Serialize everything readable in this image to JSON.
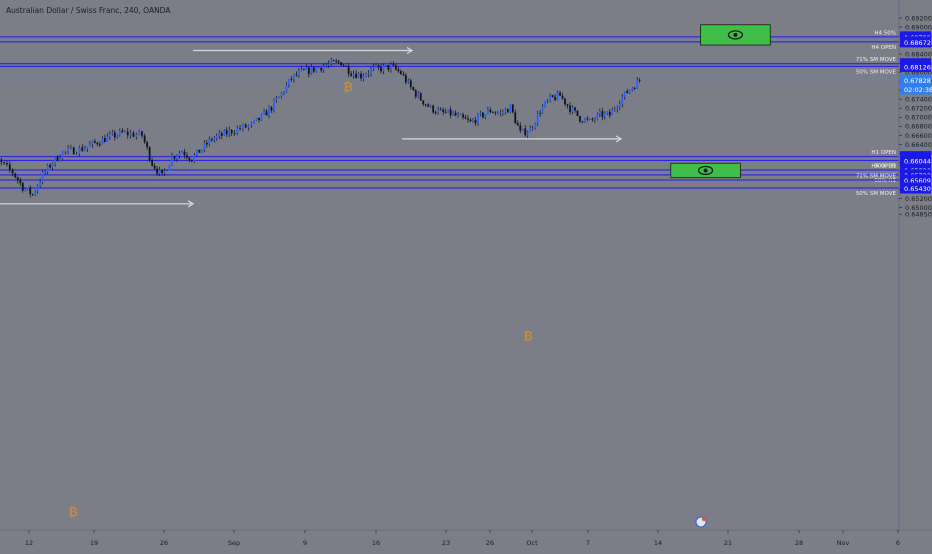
{
  "header": {
    "title": "Australian Dollar / Swiss Franc, 240, OANDA"
  },
  "colors": {
    "background": "#7b7e89",
    "up_candle": "#2962ff",
    "down_candle": "#101218",
    "level_line": "#1a1ae6",
    "last_price_line": "#4a90e2",
    "zone_fill": "#3fbf4a",
    "axis_text": "#1a1d26",
    "label_bg": "#1a1ae6",
    "arrow": "#d8d8e0",
    "bitcoin_icon": "#c98a3c"
  },
  "chart_data": {
    "type": "line",
    "title": "Australian Dollar / Swiss Franc, 240, OANDA",
    "xlabel": "",
    "ylabel": "",
    "ylim": [
      0.6478,
      0.6928
    ],
    "x_ticks": [
      "12",
      "19",
      "26",
      "Sep",
      "9",
      "16",
      "23",
      "26",
      "Oct",
      "7",
      "14",
      "21",
      "28",
      "Nov",
      "6"
    ],
    "y_ticks": [
      "0.69200",
      "0.69000",
      "0.68800",
      "0.68600",
      "0.68400",
      "0.68200",
      "0.68000",
      "0.67800",
      "0.67600",
      "0.67400",
      "0.67200",
      "0.67000",
      "0.66800",
      "0.66600",
      "0.66400",
      "0.66200",
      "0.66000",
      "0.65800",
      "0.65600",
      "0.65400",
      "0.65200",
      "0.65000",
      "0.64850"
    ],
    "series": [
      {
        "x": [
          "Aug 8",
          "Aug 9",
          "Aug 11",
          "Aug 12",
          "Aug 13",
          "Aug 14",
          "Aug 15",
          "Aug 16",
          "Aug 18",
          "Aug 19",
          "Aug 20",
          "Aug 21",
          "Aug 22",
          "Aug 24",
          "Aug 25",
          "Aug 26",
          "Aug 27",
          "Aug 28",
          "Aug 29",
          "Aug 30",
          "Aug 31",
          "Sep 1",
          "Sep 2",
          "Sep 4",
          "Sep 5",
          "Sep 6",
          "Sep 7",
          "Sep 8",
          "Sep 9",
          "Sep 10",
          "Sep 11",
          "Sep 12",
          "Sep 13",
          "Sep 14",
          "Sep 15",
          "Sep 16",
          "Sep 17",
          "Sep 18",
          "Sep 19",
          "Sep 20",
          "Sep 21",
          "Sep 22",
          "Sep 23",
          "Sep 24",
          "Sep 25",
          "Sep 26",
          "Sep 27",
          "Sep 28",
          "Sep 29",
          "Sep 30",
          "Oct 1",
          "Oct 2",
          "Oct 3",
          "Oct 4",
          "Oct 5",
          "Oct 6",
          "Oct 7",
          "Oct 8",
          "Oct 9",
          "Oct 10",
          "Oct 11",
          "Oct 12",
          "Oct 13"
        ],
        "values": [
          0.6628,
          0.6612,
          0.6578,
          0.6545,
          0.6528,
          0.6572,
          0.66,
          0.6622,
          0.663,
          0.664,
          0.665,
          0.6658,
          0.6665,
          0.666,
          0.6598,
          0.6568,
          0.6612,
          0.6625,
          0.6608,
          0.663,
          0.6652,
          0.666,
          0.667,
          0.6682,
          0.67,
          0.6722,
          0.6752,
          0.6786,
          0.68,
          0.6805,
          0.6812,
          0.6818,
          0.6822,
          0.68,
          0.6792,
          0.6805,
          0.6808,
          0.6812,
          0.6798,
          0.6765,
          0.674,
          0.672,
          0.671,
          0.6708,
          0.6698,
          0.6688,
          0.6702,
          0.6715,
          0.6708,
          0.6722,
          0.6665,
          0.6672,
          0.6715,
          0.674,
          0.6748,
          0.672,
          0.6698,
          0.669,
          0.6705,
          0.6705,
          0.6738,
          0.6762,
          0.6782
        ]
      }
    ],
    "last_price": "0.67828",
    "countdown": "02:02:38",
    "levels": [
      {
        "value": "0.68782",
        "label": "H4 50%"
      },
      {
        "value": "0.68672",
        "label": "H4 OPEN"
      },
      {
        "value": "0.68186",
        "label": "71% SM MOVE"
      },
      {
        "value": "0.68126",
        "label": "50% SM MOVE"
      },
      {
        "value": "0.66126",
        "label": "H1 OPEN"
      },
      {
        "value": "0.66044",
        "label": "50% H1"
      },
      {
        "value": "0.65830",
        "label": "H4 OPEN"
      },
      {
        "value": "0.65723",
        "label": "50% H1"
      },
      {
        "value": "0.65609",
        "label": "71% SM MOVE"
      },
      {
        "value": "0.65430",
        "label": "50% SM MOVE"
      }
    ],
    "zones": [
      {
        "name": "upper-zone",
        "from": "Oct 19",
        "to": "Oct 26",
        "high": 0.6905,
        "low": 0.686
      },
      {
        "name": "lower-zone",
        "from": "Oct 16",
        "to": "Oct 23",
        "high": 0.6598,
        "low": 0.6566
      }
    ],
    "arrows": [
      {
        "name": "top-arrow",
        "from": "Aug 29",
        "to": "Sep 20",
        "value": 0.6848
      },
      {
        "name": "middle-arrow",
        "from": "Sep 19",
        "to": "Oct 11",
        "value": 0.6652
      },
      {
        "name": "bottom-arrow",
        "from": "Aug 8",
        "to": "Aug 29",
        "value": 0.6508
      }
    ],
    "grid": false
  }
}
